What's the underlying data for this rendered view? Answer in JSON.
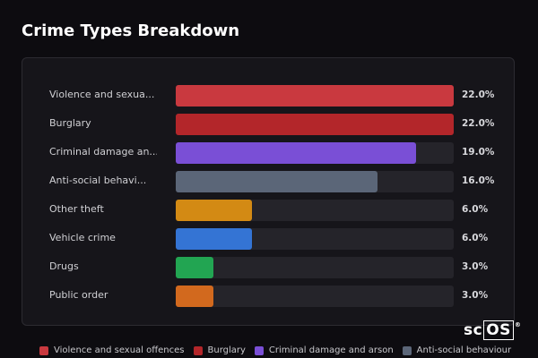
{
  "title": "Crime Types Breakdown",
  "logo_text": "scOS",
  "chart_data": {
    "type": "bar",
    "orientation": "horizontal",
    "title": "Crime Types Breakdown",
    "categories": [
      "Violence and sexual offences",
      "Burglary",
      "Criminal damage and arson",
      "Anti-social behaviour",
      "Other theft",
      "Vehicle crime",
      "Drugs",
      "Public order"
    ],
    "display_labels": [
      "Violence and sexua...",
      "Burglary",
      "Criminal damage an...",
      "Anti-social behavi...",
      "Other theft",
      "Vehicle crime",
      "Drugs",
      "Public order"
    ],
    "values": [
      22.0,
      22.0,
      19.0,
      16.0,
      6.0,
      6.0,
      3.0,
      3.0
    ],
    "value_labels": [
      "22.0%",
      "22.0%",
      "19.0%",
      "16.0%",
      "6.0%",
      "6.0%",
      "3.0%",
      "3.0%"
    ],
    "max_value": 22.0,
    "unit": "%",
    "colors": [
      "#c9393f",
      "#b3262a",
      "#7a4fd6",
      "#5b6678",
      "#d38a14",
      "#3474d4",
      "#22a552",
      "#d2691e"
    ],
    "legend": [
      {
        "label": "Violence and sexual offences",
        "color": "#c9393f"
      },
      {
        "label": "Burglary",
        "color": "#b3262a"
      },
      {
        "label": "Criminal damage and arson",
        "color": "#7a4fd6"
      },
      {
        "label": "Anti-social behaviour",
        "color": "#5b6678"
      }
    ],
    "legend_position": "bottom"
  }
}
